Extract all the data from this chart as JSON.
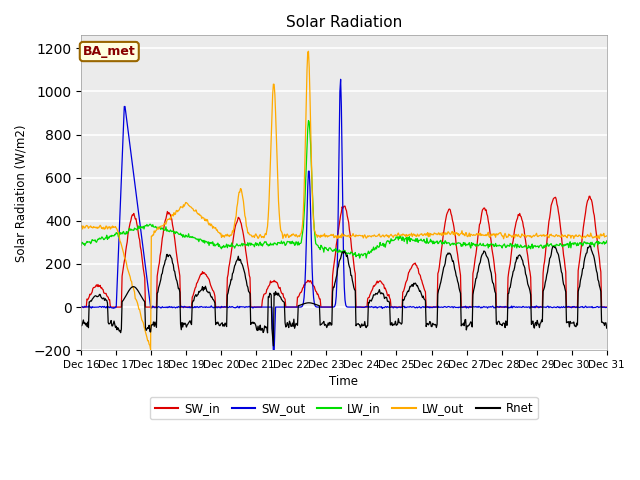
{
  "title": "Solar Radiation",
  "ylabel": "Solar Radiation (W/m2)",
  "xlabel": "Time",
  "ylim": [
    -200,
    1260
  ],
  "yticks": [
    -200,
    0,
    200,
    400,
    600,
    800,
    1000,
    1200
  ],
  "colors": {
    "SW_in": "#dd0000",
    "SW_out": "#0000dd",
    "LW_in": "#00dd00",
    "LW_out": "#ffaa00",
    "Rnet": "#000000"
  },
  "ba_met_label": "BA_met",
  "plot_bg_color": "#ebebeb",
  "fig_bg_color": "#ffffff",
  "n_points_per_day": 48,
  "days": 15,
  "date_start": 16
}
